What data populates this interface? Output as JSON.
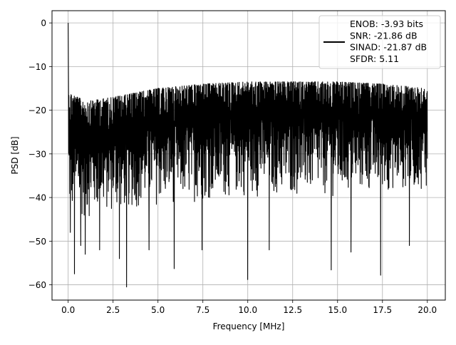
{
  "chart_data": {
    "type": "line",
    "xlabel": "Frequency [MHz]",
    "ylabel": "PSD [dB]",
    "xlim": [
      -0.9,
      21.0
    ],
    "ylim": [
      -63.5,
      2.8
    ],
    "xticks": [
      0.0,
      2.5,
      5.0,
      7.5,
      10.0,
      12.5,
      15.0,
      17.5,
      20.0
    ],
    "xtick_labels": [
      "0.0",
      "2.5",
      "5.0",
      "7.5",
      "10.0",
      "12.5",
      "15.0",
      "17.5",
      "20.0"
    ],
    "yticks": [
      0,
      -10,
      -20,
      -30,
      -40,
      -50,
      -60
    ],
    "ytick_labels": [
      "0",
      "−10",
      "−20",
      "−30",
      "−40",
      "−50",
      "−60"
    ],
    "grid": true,
    "legend_position": "top-right",
    "legend": {
      "entries": [
        "ENOB: -3.93 bits",
        "SNR: -21.86 dB",
        "SINAD: -21.87 dB",
        "SFDR: 5.11"
      ],
      "line_color": "#000000"
    },
    "series": [
      {
        "color": "#000000",
        "x_range": [
          0,
          20
        ],
        "points": 2000,
        "description_values": {
          "dc_peak_db": 0,
          "upper_envelope": [
            [
              0.05,
              -16
            ],
            [
              1,
              -18
            ],
            [
              2.5,
              -17
            ],
            [
              5,
              -15
            ],
            [
              7.5,
              -14
            ],
            [
              10,
              -13.5
            ],
            [
              12.5,
              -13.5
            ],
            [
              15,
              -13.5
            ],
            [
              17.5,
              -14
            ],
            [
              20,
              -15
            ]
          ],
          "lower_envelope": [
            [
              0.05,
              -45
            ],
            [
              1,
              -45
            ],
            [
              5,
              -42
            ],
            [
              10,
              -40
            ],
            [
              15,
              -40
            ],
            [
              20,
              -38
            ]
          ],
          "deep_nulls": [
            [
              0.12,
              -48
            ],
            [
              0.35,
              -57.5
            ],
            [
              0.7,
              -51
            ],
            [
              0.95,
              -53
            ],
            [
              1.75,
              -52
            ],
            [
              2.85,
              -54
            ],
            [
              3.25,
              -60.5
            ],
            [
              4.5,
              -52
            ],
            [
              5.9,
              -56.3
            ],
            [
              7.45,
              -52
            ],
            [
              10.0,
              -58.8
            ],
            [
              11.2,
              -52
            ],
            [
              14.65,
              -56.6
            ],
            [
              15.75,
              -52.5
            ],
            [
              17.4,
              -57.8
            ],
            [
              19.0,
              -51
            ]
          ]
        }
      }
    ]
  }
}
